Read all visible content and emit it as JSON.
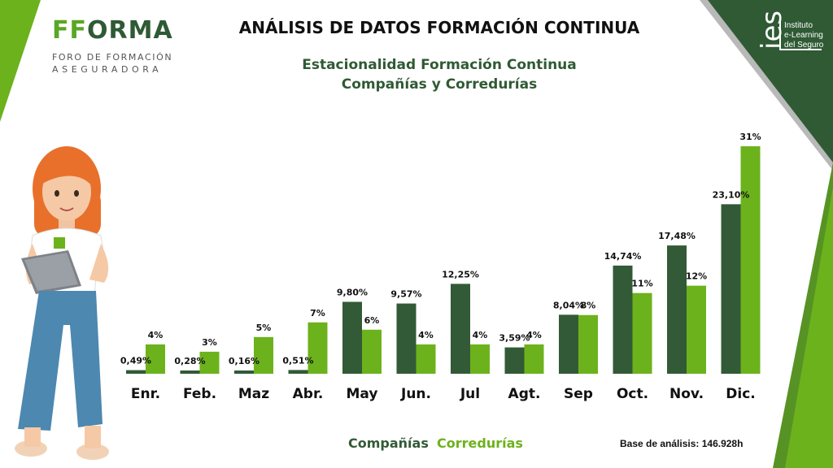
{
  "brand": {
    "logo_part1": "FF",
    "logo_part2": "ORMA",
    "tagline_1": "FORO DE FORMACIÓN",
    "tagline_2": "ASEGURADORA"
  },
  "partner": {
    "mark": "ies",
    "line_1": "Instituto",
    "line_2": "e-Learning",
    "line_3": "del Seguro"
  },
  "header": {
    "title": "ANÁLISIS DE DATOS FORMACIÓN CONTINUA"
  },
  "footer": {
    "base_text": "Base de análisis: 146.928h"
  },
  "colors": {
    "companias": "#325a36",
    "corredurias": "#6cb21c",
    "deco_dark": "#2f5a34",
    "deco_light": "#6cb21c"
  },
  "illustration": {
    "icon": "woman-with-tablet-icon"
  },
  "chart_data": {
    "type": "bar",
    "title": "Estacionalidad Formación Continua",
    "subtitle": "Compañías y Corredurías",
    "categories": [
      "Enr.",
      "Feb.",
      "Maz",
      "Abr.",
      "May",
      "Jun.",
      "Jul",
      "Agt.",
      "Sep",
      "Oct.",
      "Nov.",
      "Dic."
    ],
    "series": [
      {
        "name": "Compañías",
        "values": [
          0.49,
          0.28,
          0.16,
          0.51,
          9.8,
          9.57,
          12.25,
          3.59,
          8.04,
          14.74,
          17.48,
          23.1
        ],
        "labels": [
          "0,49%",
          "0,28%",
          "0,16%",
          "0,51%",
          "9,80%",
          "9,57%",
          "12,25%",
          "3,59%",
          "8,04%",
          "14,74%",
          "17,48%",
          "23,10%"
        ]
      },
      {
        "name": "Corredurías",
        "values": [
          4,
          3,
          5,
          7,
          6,
          4,
          4,
          4,
          8,
          11,
          12,
          31
        ],
        "labels": [
          "4%",
          "3%",
          "5%",
          "7%",
          "6%",
          "4%",
          "4%",
          "4%",
          "8%",
          "11%",
          "12%",
          "31%"
        ]
      }
    ],
    "xlabel": "",
    "ylabel": "",
    "grid": false,
    "legend": "bottom"
  }
}
